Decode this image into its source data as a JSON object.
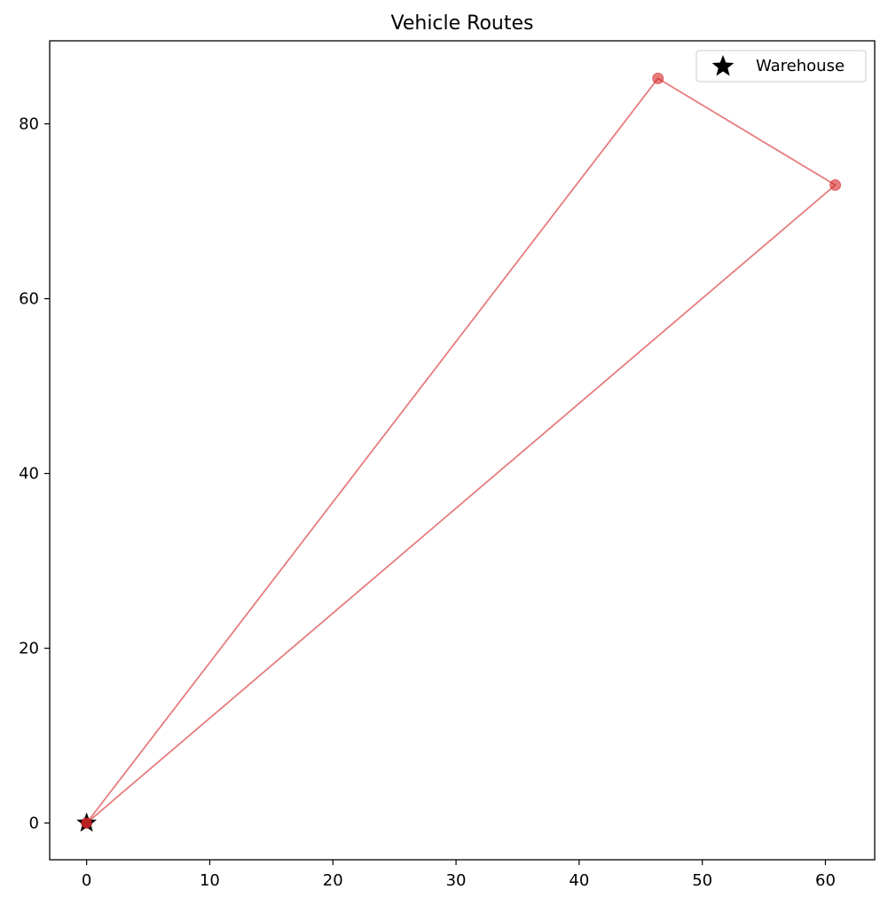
{
  "chart_data": {
    "type": "scatter",
    "title": "Vehicle Routes",
    "xlabel": "",
    "ylabel": "",
    "xlim": [
      -3,
      64
    ],
    "ylim": [
      -4.2,
      89.5
    ],
    "x_ticks": [
      0,
      10,
      20,
      30,
      40,
      50,
      60
    ],
    "y_ticks": [
      0,
      20,
      40,
      60,
      80
    ],
    "grid": false,
    "legend_position": "top-right",
    "route": {
      "color": "#d62728",
      "points": [
        {
          "x": 0,
          "y": 0
        },
        {
          "x": 46.4,
          "y": 85.2
        },
        {
          "x": 60.8,
          "y": 73.0
        },
        {
          "x": 0,
          "y": 0
        }
      ]
    },
    "warehouse": {
      "name": "Warehouse",
      "x": 0,
      "y": 0,
      "marker": "star",
      "color": "#000000"
    }
  }
}
